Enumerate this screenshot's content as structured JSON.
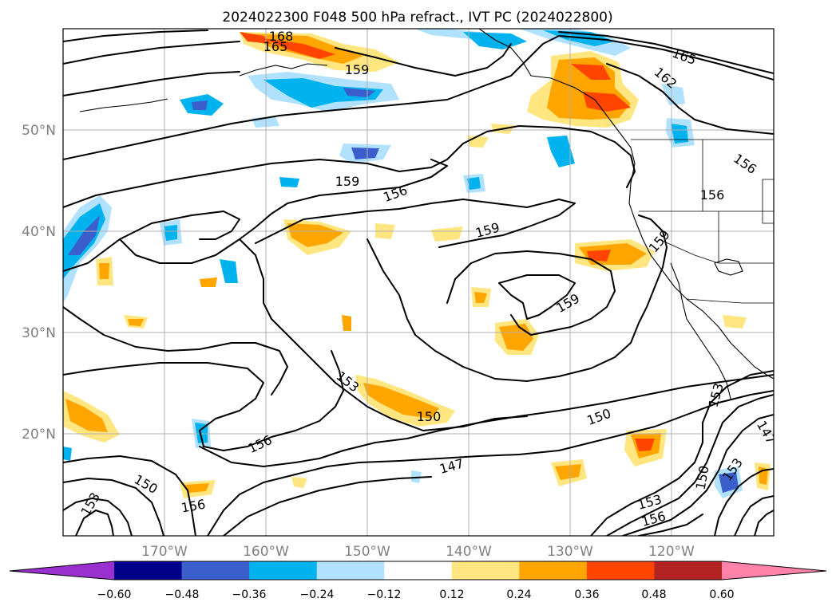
{
  "title": "2024022300 F048 500 hPa refract., IVT PC (2024022800)",
  "lat_labels": [
    "50°N",
    "40°N",
    "30°N",
    "20°N"
  ],
  "lon_labels": [
    "170°W",
    "160°W",
    "150°W",
    "140°W",
    "130°W",
    "120°W"
  ],
  "contour_labels": [
    "168",
    "165",
    "159",
    "165",
    "162",
    "159",
    "156",
    "156",
    "159",
    "156",
    "159",
    "159",
    "159",
    "153",
    "150",
    "150",
    "153",
    "147",
    "156",
    "150",
    "153",
    "156",
    "153",
    "150",
    "153",
    "156",
    "147",
    "153"
  ],
  "colorbar": {
    "tick_labels": [
      "−0.60",
      "−0.48",
      "−0.36",
      "−0.24",
      "−0.12",
      "0.12",
      "0.24",
      "0.36",
      "0.48",
      "0.60"
    ],
    "colors": [
      "#9b30d0",
      "#00008b",
      "#3a5fcd",
      "#00b2ee",
      "#b0e2ff",
      "#ffffff",
      "#ffe680",
      "#ffa500",
      "#ff4500",
      "#b22222",
      "#ff82ab",
      "#ff82ab"
    ],
    "min_color": "#9b30d0",
    "max_color": "#ff82ab"
  },
  "shading_colors": {
    "neg1": "#b0e2ff",
    "neg2": "#00b2ee",
    "neg3": "#3a5fcd",
    "pos1": "#ffe680",
    "pos2": "#ffa500",
    "pos3": "#ff4500"
  }
}
